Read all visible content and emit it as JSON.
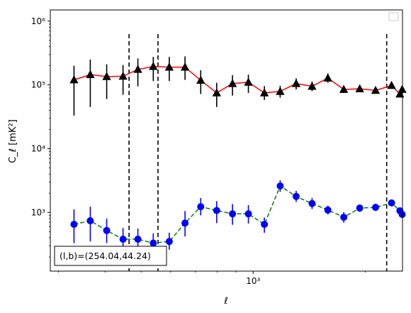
{
  "chart_data": {
    "type": "scatter",
    "xscale": "log",
    "yscale": "log",
    "xlim": [
      285,
      2520
    ],
    "ylim": [
      120,
      1500000
    ],
    "xlabel": "ℓ",
    "ylabel": "C_ℓ  [mK²]",
    "x_ticks": [
      {
        "value": 1000,
        "label": "10³"
      }
    ],
    "y_ticks": [
      {
        "value": 1000,
        "label": "10³"
      },
      {
        "value": 10000,
        "label": "10⁴"
      },
      {
        "value": 100000,
        "label": "10⁵"
      },
      {
        "value": 1000000,
        "label": "10⁶"
      }
    ],
    "x": [
      330,
      365,
      404,
      447,
      490,
      539,
      595,
      656,
      723,
      798,
      880,
      971,
      1072,
      1182,
      1305,
      1440,
      1588,
      1752,
      1934,
      2133,
      2355,
      2480,
      2515
    ],
    "series": [
      {
        "marker": "triangle",
        "marker_color": "#000000",
        "line_color": "#ff0000",
        "line_style": "solid",
        "values": [
          120000,
          145000,
          135000,
          137000,
          175000,
          195000,
          190000,
          190000,
          118000,
          75000,
          105000,
          110000,
          75000,
          79000,
          105000,
          95000,
          128000,
          85000,
          87000,
          82000,
          98000,
          72000,
          85000
        ],
        "err_low": [
          33000,
          45000,
          60000,
          70000,
          95000,
          115000,
          115000,
          120000,
          72000,
          45000,
          68000,
          75000,
          58000,
          63000,
          85000,
          80000,
          108000,
          75000,
          78000,
          74000,
          90000,
          65000,
          78000
        ],
        "err_high": [
          200000,
          250000,
          210000,
          205000,
          260000,
          275000,
          275000,
          280000,
          170000,
          108000,
          142000,
          145000,
          96000,
          97000,
          127000,
          113000,
          152000,
          97000,
          97000,
          91000,
          108000,
          80000,
          93000
        ]
      },
      {
        "marker": "circle",
        "marker_color": "#0000ff",
        "line_color": "#008000",
        "line_style": "dashed",
        "values": [
          650,
          740,
          520,
          380,
          380,
          330,
          350,
          680,
          1230,
          1070,
          950,
          950,
          650,
          2600,
          1780,
          1380,
          1090,
          840,
          1170,
          1200,
          1410,
          1060,
          930
        ],
        "err_low": [
          330,
          350,
          330,
          270,
          280,
          250,
          260,
          420,
          900,
          680,
          640,
          670,
          480,
          2100,
          1460,
          1130,
          930,
          690,
          1020,
          1060,
          1260,
          940,
          820
        ],
        "err_high": [
          1120,
          1230,
          800,
          570,
          560,
          470,
          480,
          1050,
          1680,
          1500,
          1350,
          1300,
          830,
          3200,
          2180,
          1680,
          1280,
          1010,
          1330,
          1360,
          1570,
          1190,
          1050
        ]
      }
    ],
    "vlines": [
      464,
      555,
      2285
    ],
    "annotation": "(l,b)=(254.04,44.24)",
    "legend": "top-right",
    "grid": false
  }
}
